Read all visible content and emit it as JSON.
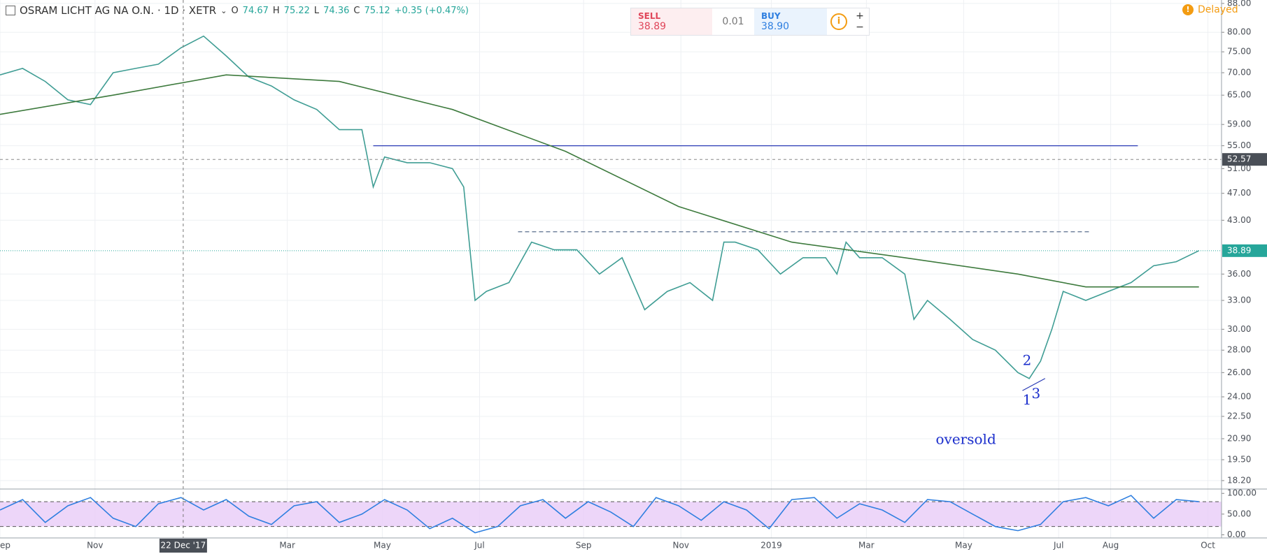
{
  "header": {
    "ohlc": [
      {
        "label": "O",
        "value": "74.67"
      },
      {
        "label": "H",
        "value": "75.22"
      },
      {
        "label": "L",
        "value": "74.36"
      },
      {
        "label": "C",
        "value": "75.12"
      }
    ],
    "change": "+0.35 (+0.47%)"
  },
  "trade_panel": {
    "sell_label": "SELL",
    "sell_price": "38.89",
    "spread": "0.01",
    "buy_label": "BUY",
    "buy_price": "38.90"
  },
  "status": "Delayed",
  "chart_data": [
    {
      "type": "line",
      "title": "OSRAM LICHT AG NA O.N. · 1D · XETR",
      "log_scale": true,
      "grid": true,
      "xlim": [
        0,
        540
      ],
      "ylim": [
        17.7,
        89
      ],
      "xticks": [
        {
          "value": 0,
          "label": "ep"
        },
        {
          "value": 42,
          "label": "Nov"
        },
        {
          "value": 127,
          "label": "Mar"
        },
        {
          "value": 169,
          "label": "May"
        },
        {
          "value": 212,
          "label": "Jul"
        },
        {
          "value": 258,
          "label": "Sep"
        },
        {
          "value": 301,
          "label": "Nov"
        },
        {
          "value": 341,
          "label": "2019"
        },
        {
          "value": 383,
          "label": "Mar"
        },
        {
          "value": 426,
          "label": "May"
        },
        {
          "value": 468,
          "label": "Jul"
        },
        {
          "value": 491,
          "label": "Aug"
        },
        {
          "value": 534,
          "label": "Oct"
        }
      ],
      "yticks": [
        {
          "value": 88,
          "label": "88.00"
        },
        {
          "value": 80,
          "label": "80.00"
        },
        {
          "value": 75,
          "label": "75.00"
        },
        {
          "value": 70,
          "label": "70.00"
        },
        {
          "value": 65,
          "label": "65.00"
        },
        {
          "value": 59,
          "label": "59.00"
        },
        {
          "value": 55,
          "label": "55.00"
        },
        {
          "value": 51,
          "label": "51.00"
        },
        {
          "value": 47,
          "label": "47.00"
        },
        {
          "value": 43,
          "label": "43.00"
        },
        {
          "value": 36,
          "label": "36.00"
        },
        {
          "value": 33,
          "label": "33.00"
        },
        {
          "value": 30,
          "label": "30.00"
        },
        {
          "value": 28,
          "label": "28.00"
        },
        {
          "value": 26,
          "label": "26.00"
        },
        {
          "value": 24,
          "label": "24.00"
        },
        {
          "value": 22.5,
          "label": "22.50"
        },
        {
          "value": 20.9,
          "label": "20.90"
        },
        {
          "value": 19.5,
          "label": "19.50"
        },
        {
          "value": 18.2,
          "label": "18.20"
        }
      ],
      "series": [
        {
          "color": "#3f9d94",
          "x": [
            0,
            10,
            20,
            30,
            40,
            50,
            60,
            70,
            80,
            90,
            100,
            110,
            120,
            130,
            140,
            150,
            160,
            165,
            170,
            180,
            190,
            200,
            205,
            210,
            215,
            225,
            235,
            245,
            255,
            265,
            275,
            285,
            295,
            305,
            315,
            320,
            325,
            335,
            345,
            355,
            365,
            370,
            374,
            380,
            390,
            400,
            404,
            410,
            420,
            430,
            440,
            450,
            455,
            460,
            465,
            470,
            475,
            480,
            490,
            500,
            510,
            520,
            530
          ],
          "values": [
            69.5,
            71,
            68,
            64,
            63,
            70,
            71,
            72,
            76,
            79,
            74,
            69,
            67,
            64,
            62,
            58,
            58,
            48,
            53,
            52,
            52,
            51,
            48,
            33,
            34,
            35,
            40,
            39,
            39,
            36,
            38,
            32,
            34,
            35,
            33,
            40,
            40,
            39,
            36,
            38,
            38,
            36,
            40,
            38,
            38,
            36,
            31,
            33,
            31,
            29,
            28,
            26,
            25.5,
            27,
            30,
            34,
            33.5,
            33,
            34,
            35,
            37,
            37.5,
            38.89
          ]
        },
        {
          "color": "#3d7a3d",
          "x": [
            0,
            50,
            100,
            150,
            200,
            250,
            300,
            350,
            400,
            450,
            480,
            500,
            530
          ],
          "values": [
            61,
            65,
            69.5,
            68,
            62,
            54,
            45,
            40,
            38,
            36,
            34.5,
            34.5,
            34.5
          ]
        }
      ],
      "hlines": [
        {
          "value": 55,
          "x": [
            165,
            503
          ],
          "color": "#2a3bb5",
          "dashed": false
        },
        {
          "value": 41.4,
          "x": [
            229,
            482
          ],
          "color": "#5a6e8c",
          "dashed": true
        }
      ],
      "trendline": {
        "x": [
          452,
          462
        ],
        "values": [
          24.5,
          25.5
        ],
        "color": "#2a3bb5"
      },
      "annotations": [
        {
          "text": "oversold",
          "x": 427,
          "y": 20.8
        },
        {
          "text": "1",
          "x": 454,
          "y": 23.7
        },
        {
          "text": "2",
          "x": 454,
          "y": 27.0
        },
        {
          "text": "3",
          "x": 458,
          "y": 24.2
        }
      ],
      "last_price": {
        "value": 38.89,
        "label": "38.89",
        "color": "#26a69a"
      },
      "crosshair": {
        "x": 81,
        "x_label": "22 Dec '17",
        "y": {
          "value": 52.57,
          "label": "52.57"
        }
      }
    },
    {
      "type": "line",
      "ylim": [
        -7.5,
        110.5
      ],
      "xlim": [
        0,
        540
      ],
      "yticks": [
        {
          "value": 100,
          "label": "100.00"
        },
        {
          "value": 50,
          "label": "50.00"
        },
        {
          "value": 0,
          "label": "0.00"
        }
      ],
      "band": [
        20,
        80
      ],
      "band_color": "#e8ccf7",
      "series": [
        {
          "color": "#2f7fe0",
          "x": [
            0,
            10,
            20,
            30,
            40,
            50,
            60,
            70,
            80,
            90,
            100,
            110,
            120,
            130,
            140,
            150,
            160,
            170,
            180,
            190,
            200,
            210,
            220,
            230,
            240,
            250,
            260,
            270,
            280,
            290,
            300,
            310,
            320,
            330,
            340,
            350,
            360,
            370,
            380,
            390,
            400,
            410,
            420,
            430,
            440,
            450,
            460,
            470,
            480,
            490,
            500,
            510,
            520,
            530
          ],
          "values": [
            60,
            85,
            30,
            70,
            90,
            40,
            20,
            75,
            90,
            60,
            85,
            45,
            25,
            70,
            80,
            30,
            50,
            85,
            60,
            15,
            40,
            5,
            20,
            70,
            85,
            40,
            80,
            55,
            20,
            90,
            70,
            35,
            80,
            60,
            15,
            85,
            90,
            40,
            75,
            60,
            30,
            85,
            80,
            50,
            20,
            10,
            25,
            80,
            90,
            70,
            95,
            40,
            85,
            80
          ]
        }
      ]
    }
  ]
}
